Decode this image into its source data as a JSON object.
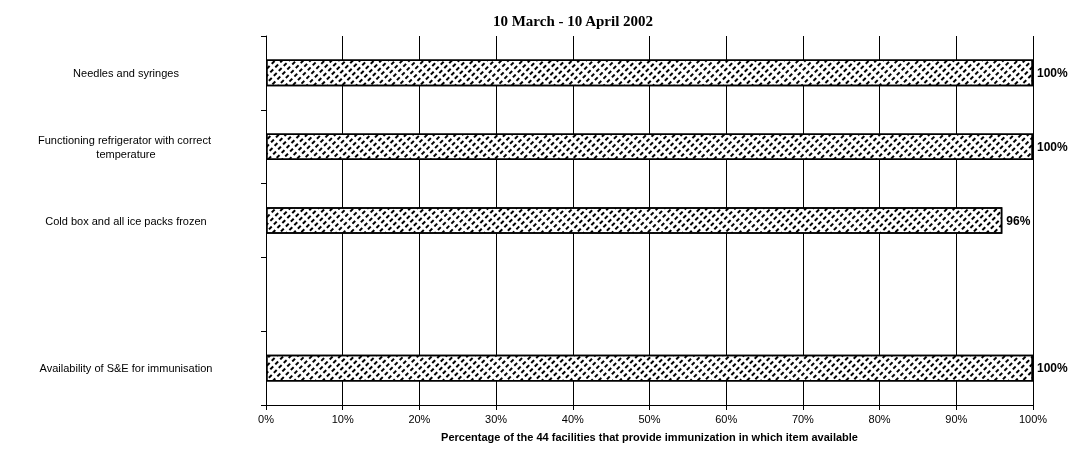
{
  "chart_data": {
    "type": "bar",
    "orientation": "horizontal",
    "title": "10 March - 10 April 2002",
    "xlabel": "Percentage of the 44 facilities that provide immunization in which item available",
    "categories": [
      "Needles and syringes",
      "Functioning refrigerator with correct temperature",
      "Cold box and all ice packs frozen",
      null,
      "Availability of S&E for immunisation"
    ],
    "values": [
      100,
      100,
      96,
      null,
      100
    ],
    "value_labels": [
      "100%",
      "100%",
      "96%",
      null,
      "100%"
    ],
    "color": "#ffffff",
    "xlim": [
      0,
      100
    ],
    "xticks": [
      {
        "value": 0,
        "label": "0%"
      },
      {
        "value": 10,
        "label": "10%"
      },
      {
        "value": 20,
        "label": "20%"
      },
      {
        "value": 30,
        "label": "30%"
      },
      {
        "value": 40,
        "label": "40%"
      },
      {
        "value": 50,
        "label": "50%"
      },
      {
        "value": 60,
        "label": "60%"
      },
      {
        "value": 70,
        "label": "70%"
      },
      {
        "value": 80,
        "label": "80%"
      },
      {
        "value": 90,
        "label": "90%"
      },
      {
        "value": 100,
        "label": "100%"
      }
    ],
    "grid": "x"
  }
}
